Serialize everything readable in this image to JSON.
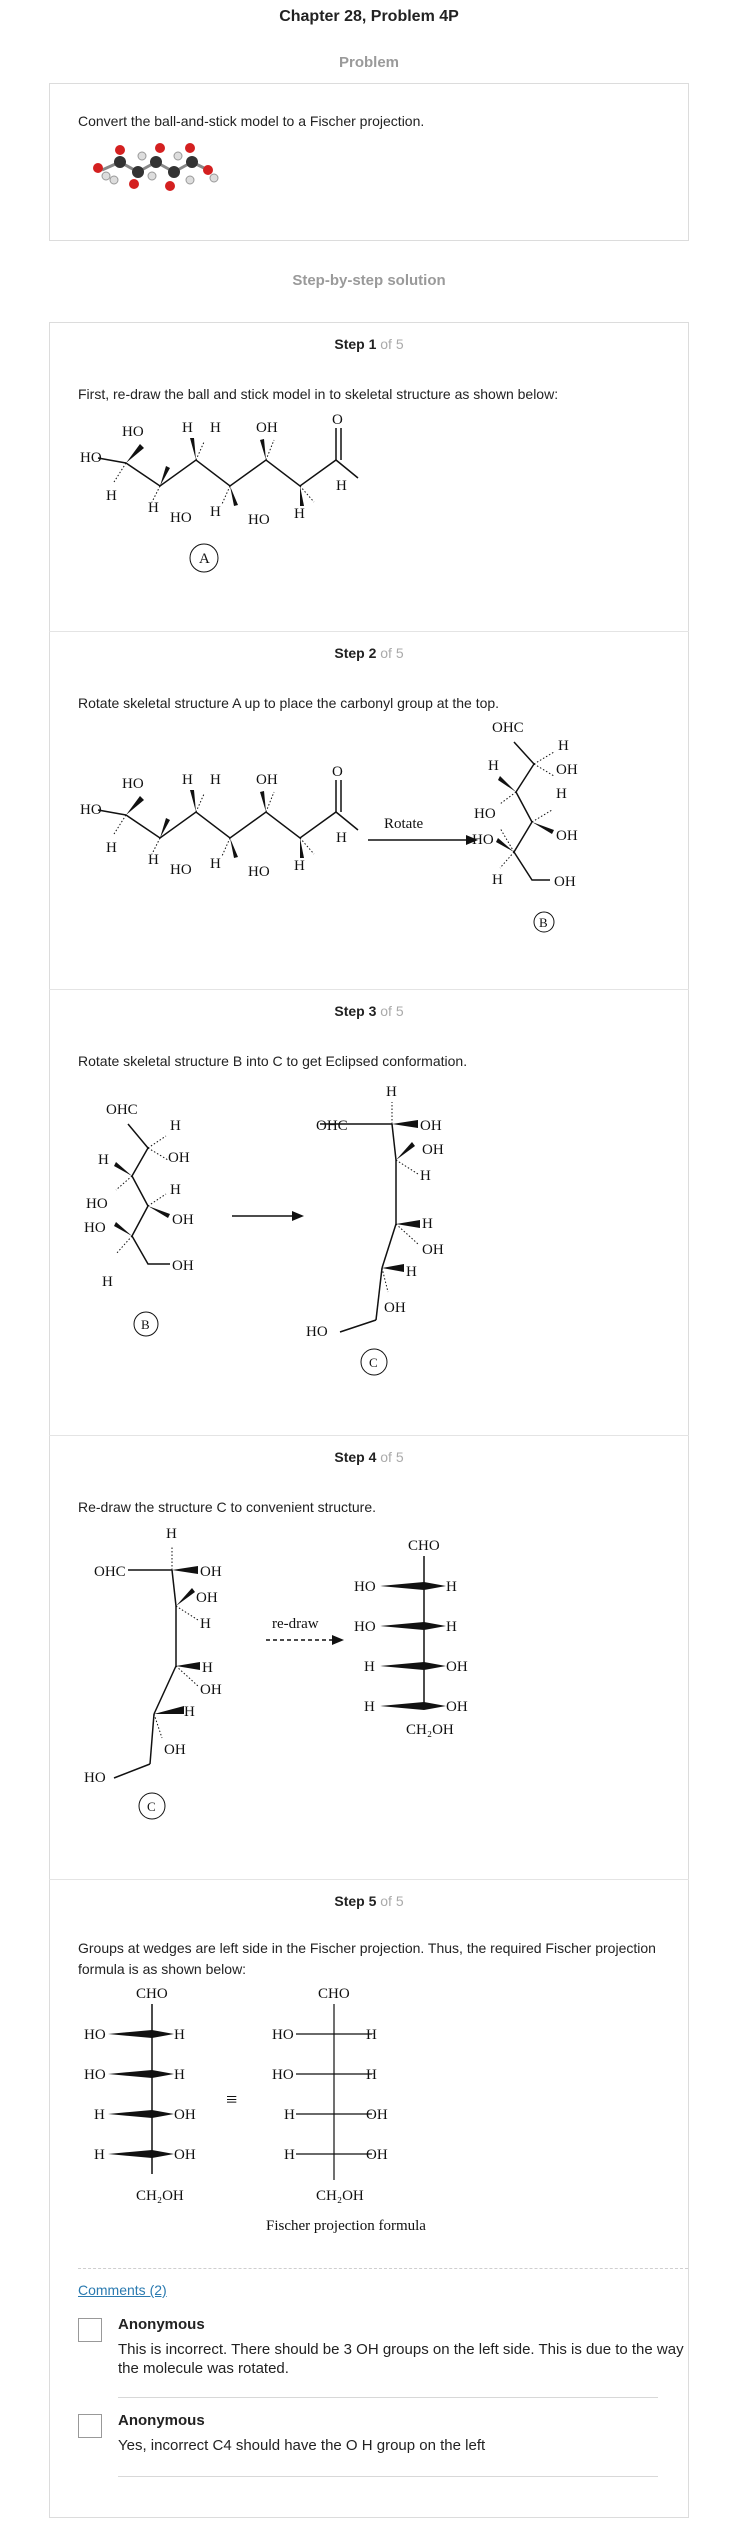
{
  "title": "Chapter 28, Problem 4P",
  "problem": {
    "heading": "Problem",
    "text": "Convert the ball-and-stick model to a Fischer projection."
  },
  "solution_heading": "Step-by-step solution",
  "steps": [
    {
      "label": "Step 1",
      "of": "of 5",
      "text": "First, re-draw the ball and stick model in to skeletal structure as shown below:"
    },
    {
      "label": "Step 2",
      "of": "of 5",
      "text": "Rotate skeletal structure A up to place the carbonyl group at the top."
    },
    {
      "label": "Step 3",
      "of": "of 5",
      "text": "Rotate skeletal structure B into C to get Eclipsed conformation."
    },
    {
      "label": "Step 4",
      "of": "of 5",
      "text": "Re-draw the structure C to convenient structure."
    },
    {
      "label": "Step 5",
      "of": "of 5",
      "text": "Groups at wedges are left side in the Fischer projection. Thus, the required Fischer projection formula is as shown below:"
    }
  ],
  "labels": {
    "A": "A",
    "B": "B",
    "C": "C",
    "rotate": "Rotate",
    "redraw": "re-draw",
    "fischer_caption": "Fischer projection formula",
    "HO": "HO",
    "H": "H",
    "OH": "OH",
    "O": "O",
    "OHC": "OHC",
    "CHO": "CHO",
    "CH2OH": "CH₂OH",
    "equiv": "≡"
  },
  "fischer": {
    "top": "CHO",
    "rows": [
      {
        "left": "HO",
        "right": "H"
      },
      {
        "left": "HO",
        "right": "H"
      },
      {
        "left": "H",
        "right": "OH"
      },
      {
        "left": "H",
        "right": "OH"
      }
    ],
    "bottom": "CH₂OH"
  },
  "comments": {
    "link": "Comments (2)",
    "items": [
      {
        "author": "Anonymous",
        "text": "This is incorrect. There should be 3 OH groups on the left side. This is due to the way the molecule was rotated."
      },
      {
        "author": "Anonymous",
        "text": "Yes, incorrect C4 should have the O H group on the left"
      }
    ]
  },
  "colors": {
    "oxygen": "#d42020",
    "carbon": "#333333",
    "hydrogen": "#e6e6e6",
    "link": "#2a7ab0"
  }
}
